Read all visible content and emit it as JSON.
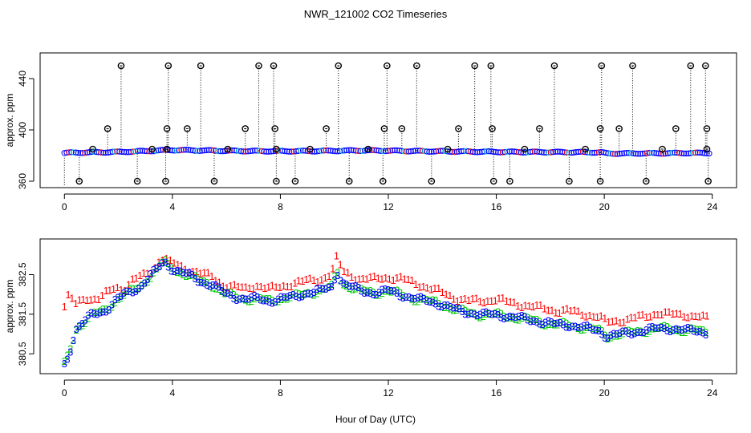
{
  "chart_data": [
    {
      "type": "scatter",
      "title": "NWR_121002  CO2 Timeseries",
      "xlabel": "",
      "ylabel": "approx. ppm",
      "xlim": [
        -0.9,
        24.9
      ],
      "ylim": [
        355,
        460
      ],
      "xticks": [
        0,
        4,
        8,
        12,
        16,
        20,
        24
      ],
      "yticks": [
        360,
        400,
        440
      ],
      "baseline": {
        "x": [
          0,
          0.3,
          1,
          2,
          3,
          3.8,
          4,
          5,
          6,
          7,
          8,
          9,
          10,
          11,
          12,
          13,
          14,
          15,
          16,
          17,
          18,
          19,
          19.9,
          20.1,
          21,
          22,
          23,
          23.9
        ],
        "y": [
          382.0,
          382.3,
          382.5,
          382.8,
          383.5,
          384.2,
          384.3,
          384.0,
          383.7,
          383.5,
          383.4,
          383.5,
          383.7,
          384.0,
          383.8,
          383.5,
          383.3,
          383.1,
          382.9,
          382.8,
          382.7,
          382.6,
          382.5,
          381.6,
          381.7,
          381.8,
          382.0,
          382.0
        ]
      },
      "spikes_high": [
        2.1,
        3.85,
        5.05,
        7.2,
        7.75,
        10.15,
        11.95,
        13.05,
        15.2,
        15.8,
        18.15,
        19.9,
        21.05,
        23.2,
        23.75
      ],
      "spikes_mid": [
        1.6,
        3.8,
        4.55,
        6.7,
        7.8,
        9.7,
        11.85,
        12.5,
        14.6,
        15.85,
        17.6,
        19.85,
        20.55,
        22.65,
        23.8
      ],
      "spikes_low": [
        0.55,
        2.7,
        3.75,
        5.55,
        7.85,
        8.55,
        10.55,
        11.8,
        13.6,
        15.9,
        16.5,
        18.7,
        19.85,
        21.55,
        23.85
      ],
      "bumps": [
        1.05,
        3.25,
        3.8,
        6.05,
        7.85,
        9.1,
        11.25,
        14.2,
        17.05,
        19.3,
        22.15,
        23.8
      ],
      "spike_values": {
        "high": 450,
        "mid": 401,
        "low": 360,
        "bump": 385
      }
    },
    {
      "type": "scatter",
      "title": "",
      "xlabel": "Hour of Day (UTC)",
      "ylabel": "approx. ppm",
      "xlim": [
        -0.9,
        24.9
      ],
      "ylim": [
        380.0,
        383.4
      ],
      "xticks": [
        0,
        4,
        8,
        12,
        16,
        20,
        24
      ],
      "yticks": [
        380.5,
        381.5,
        382.5
      ],
      "series": [
        {
          "name": "1",
          "color": "#ff0000",
          "offset": 0.4,
          "x": [
            0,
            0.1,
            0.2,
            0.3,
            0.4,
            0.6,
            0.8,
            1.0,
            1.3,
            1.6,
            1.9,
            2.2,
            2.5,
            2.8,
            3.0,
            3.3,
            3.5,
            3.7,
            3.9,
            4.2,
            4.6,
            5.0,
            5.5,
            5.9,
            6.3,
            6.7,
            7.1,
            7.6,
            8.0,
            8.5,
            9.0,
            9.5,
            9.9,
            10.1,
            10.3,
            10.6,
            11.0,
            11.5,
            12.0,
            12.5,
            13.0,
            13.4,
            13.8,
            14.2,
            14.6,
            15.0,
            15.5,
            16.0,
            16.5,
            17.0,
            17.4,
            17.8,
            18.2,
            18.6,
            19.0,
            19.4,
            19.8,
            20.1,
            20.5,
            21.0,
            21.5,
            22.0,
            22.5,
            23.0,
            23.5,
            23.8
          ],
          "y": [
            381.7,
            381.9,
            382.0,
            381.85,
            381.75,
            381.85,
            381.95,
            381.9,
            381.9,
            382.05,
            382.2,
            382.15,
            382.35,
            382.45,
            382.5,
            382.65,
            382.85,
            382.95,
            382.8,
            382.75,
            382.65,
            382.55,
            382.45,
            382.25,
            382.2,
            382.15,
            382.25,
            382.15,
            382.2,
            382.3,
            382.35,
            382.4,
            382.55,
            382.95,
            382.6,
            382.5,
            382.4,
            382.4,
            382.45,
            382.4,
            382.3,
            382.2,
            382.1,
            382.0,
            381.9,
            381.85,
            381.85,
            381.9,
            381.8,
            381.75,
            381.7,
            381.65,
            381.6,
            381.6,
            381.55,
            381.5,
            381.45,
            381.3,
            381.35,
            381.4,
            381.45,
            381.55,
            381.5,
            381.5,
            381.45,
            381.4
          ]
        },
        {
          "name": "2",
          "color": "#00c800",
          "offset": -0.15,
          "x": [
            0,
            0.1,
            0.2,
            0.3,
            0.4,
            0.6,
            0.8,
            1.0,
            1.3,
            1.6,
            1.9,
            2.2,
            2.5,
            2.8,
            3.0,
            3.3,
            3.5,
            3.7,
            3.9,
            4.2,
            4.6,
            5.0,
            5.5,
            5.9,
            6.3,
            6.7,
            7.1,
            7.6,
            8.0,
            8.5,
            9.0,
            9.5,
            9.9,
            10.1,
            10.3,
            10.6,
            11.0,
            11.5,
            12.0,
            12.5,
            13.0,
            13.4,
            13.8,
            14.2,
            14.6,
            15.0,
            15.5,
            16.0,
            16.5,
            17.0,
            17.4,
            17.8,
            18.2,
            18.6,
            19.0,
            19.4,
            19.8,
            20.1,
            20.5,
            21.0,
            21.5,
            22.0,
            22.5,
            23.0,
            23.5,
            23.8
          ],
          "y": [
            380.25,
            380.4,
            380.6,
            380.8,
            381.1,
            381.25,
            381.35,
            381.5,
            381.55,
            381.65,
            381.85,
            382.0,
            382.1,
            382.2,
            382.35,
            382.55,
            382.7,
            382.85,
            382.7,
            382.6,
            382.5,
            382.35,
            382.25,
            382.05,
            381.95,
            381.9,
            381.9,
            381.85,
            381.9,
            381.95,
            382.05,
            382.1,
            382.2,
            382.6,
            382.3,
            382.2,
            382.1,
            382.05,
            382.1,
            382.0,
            381.9,
            381.85,
            381.8,
            381.7,
            381.6,
            381.55,
            381.5,
            381.5,
            381.45,
            381.4,
            381.35,
            381.3,
            381.25,
            381.25,
            381.2,
            381.15,
            381.1,
            380.95,
            381.0,
            381.05,
            381.1,
            381.15,
            381.15,
            381.1,
            381.1,
            381.05
          ]
        },
        {
          "name": "3",
          "color": "#0000ff",
          "offset": 0.0,
          "x": [
            0,
            0.1,
            0.2,
            0.3,
            0.4,
            0.6,
            0.8,
            1.0,
            1.3,
            1.6,
            1.9,
            2.2,
            2.5,
            2.8,
            3.0,
            3.3,
            3.5,
            3.7,
            3.9,
            4.2,
            4.6,
            5.0,
            5.5,
            5.9,
            6.3,
            6.7,
            7.1,
            7.6,
            8.0,
            8.5,
            9.0,
            9.5,
            9.9,
            10.1,
            10.3,
            10.6,
            11.0,
            11.5,
            12.0,
            12.5,
            13.0,
            13.4,
            13.8,
            14.2,
            14.6,
            15.0,
            15.5,
            16.0,
            16.5,
            17.0,
            17.4,
            17.8,
            18.2,
            18.6,
            19.0,
            19.4,
            19.8,
            20.1,
            20.5,
            21.0,
            21.5,
            22.0,
            22.5,
            23.0,
            23.5,
            23.8
          ],
          "y": [
            380.25,
            380.4,
            380.6,
            380.8,
            381.1,
            381.25,
            381.35,
            381.5,
            381.55,
            381.65,
            381.85,
            382.0,
            382.1,
            382.2,
            382.35,
            382.55,
            382.7,
            382.85,
            382.7,
            382.6,
            382.5,
            382.35,
            382.25,
            382.05,
            381.95,
            381.9,
            381.9,
            381.85,
            381.9,
            381.95,
            382.05,
            382.1,
            382.2,
            382.6,
            382.3,
            382.2,
            382.1,
            382.05,
            382.1,
            382.0,
            381.9,
            381.85,
            381.8,
            381.7,
            381.6,
            381.55,
            381.5,
            381.5,
            381.45,
            381.4,
            381.35,
            381.3,
            381.25,
            381.25,
            381.2,
            381.15,
            381.1,
            380.95,
            381.0,
            381.05,
            381.1,
            381.15,
            381.15,
            381.1,
            381.1,
            381.05
          ]
        }
      ]
    }
  ]
}
